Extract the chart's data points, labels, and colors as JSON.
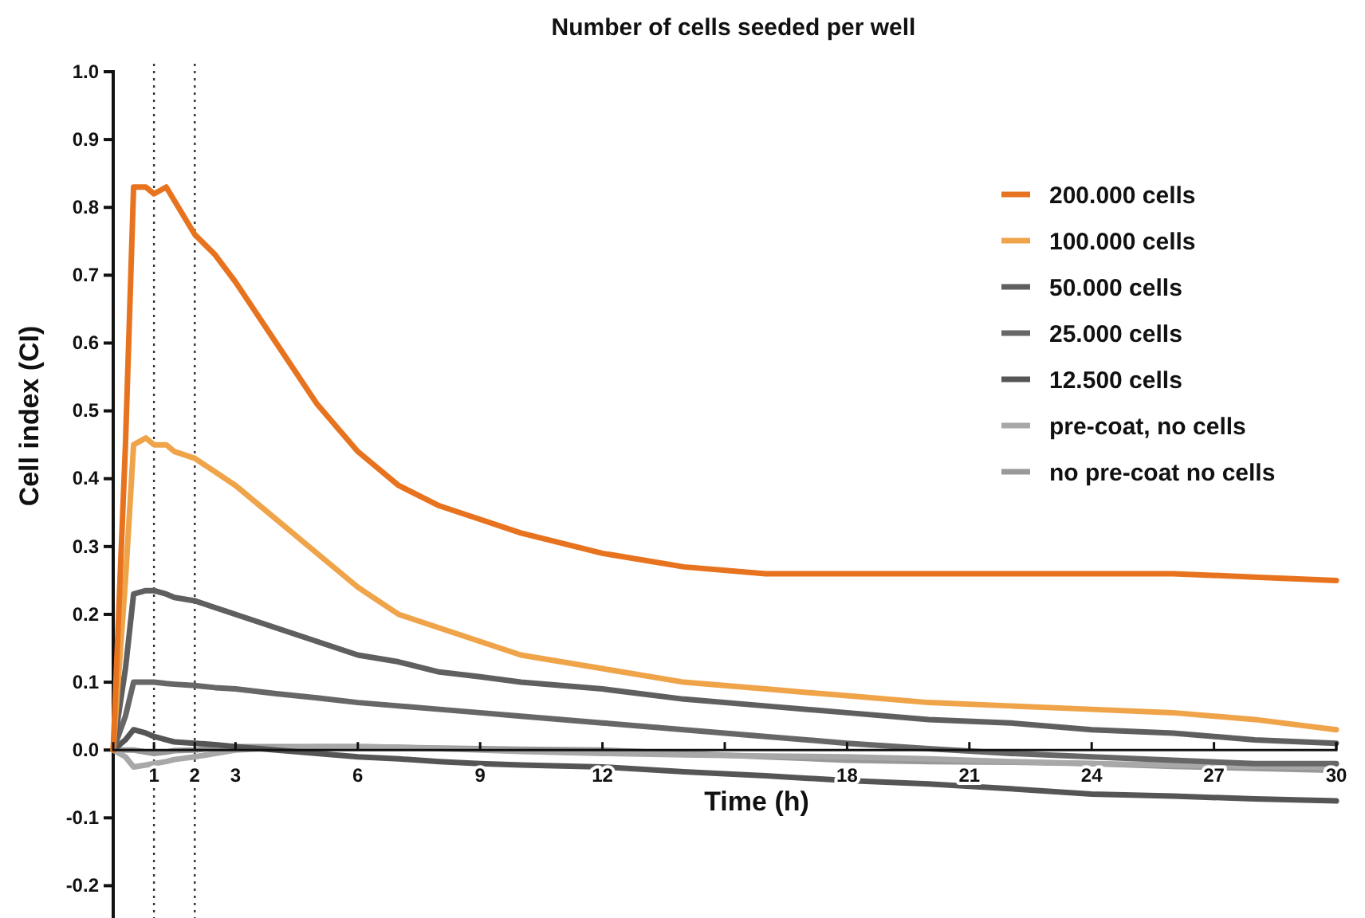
{
  "chart_data": {
    "type": "line",
    "title": "Number of cells seeded per well",
    "xlabel": "Time (h)",
    "ylabel": "Cell index (CI)",
    "xlim": [
      0,
      30
    ],
    "xticks": [
      1,
      2,
      3,
      6,
      9,
      12,
      {
        "value": 15,
        "label": null
      },
      18,
      21,
      24,
      27,
      30
    ],
    "ylim": [
      -0.25,
      1.0
    ],
    "yticks": [
      -0.2,
      -0.1,
      {
        "value": 0,
        "label": "0.0"
      },
      0.1,
      0.2,
      0.3,
      0.4,
      0.5,
      0.6,
      0.7,
      0.8,
      0.9,
      {
        "value": 1,
        "label": "1.0"
      }
    ],
    "grid": false,
    "legend": "top right",
    "marker": "none",
    "line_style": "solid",
    "ref_lines": [
      {
        "axis": "x",
        "value": 1,
        "line_style": "dotted",
        "color": "#333333"
      },
      {
        "axis": "x",
        "value": 2,
        "line_style": "dotted",
        "color": "#333333"
      }
    ],
    "x": [
      0,
      0.3,
      0.5,
      0.8,
      1,
      1.3,
      1.5,
      2,
      2.5,
      3,
      4,
      5,
      6,
      7,
      8,
      9,
      10,
      12,
      14,
      16,
      18,
      20,
      22,
      24,
      26,
      28,
      30
    ],
    "series": [
      {
        "name": "200.000 cells",
        "color": "#e8731f",
        "values": [
          0,
          0.45,
          0.83,
          0.83,
          0.82,
          0.83,
          0.81,
          0.76,
          0.73,
          0.69,
          0.6,
          0.51,
          0.44,
          0.39,
          0.36,
          0.34,
          0.32,
          0.29,
          0.27,
          0.26,
          0.26,
          0.26,
          0.26,
          0.26,
          0.26,
          0.255,
          0.25
        ]
      },
      {
        "name": "100.000 cells",
        "color": "#f0a44a",
        "values": [
          0,
          0.25,
          0.45,
          0.46,
          0.45,
          0.45,
          0.44,
          0.43,
          0.41,
          0.39,
          0.34,
          0.29,
          0.24,
          0.2,
          0.18,
          0.16,
          0.14,
          0.12,
          0.1,
          0.09,
          0.08,
          0.07,
          0.065,
          0.06,
          0.055,
          0.045,
          0.03
        ]
      },
      {
        "name": "50.000 cells",
        "color": "#5f5f5f",
        "values": [
          0,
          0.12,
          0.23,
          0.235,
          0.235,
          0.23,
          0.225,
          0.22,
          0.21,
          0.2,
          0.18,
          0.16,
          0.14,
          0.13,
          0.115,
          0.108,
          0.1,
          0.09,
          0.075,
          0.065,
          0.055,
          0.045,
          0.04,
          0.03,
          0.025,
          0.015,
          0.01
        ]
      },
      {
        "name": "25.000 cells",
        "color": "#676767",
        "values": [
          0,
          0.05,
          0.1,
          0.1,
          0.1,
          0.098,
          0.097,
          0.095,
          0.092,
          0.09,
          0.083,
          0.077,
          0.07,
          0.065,
          0.06,
          0.055,
          0.05,
          0.04,
          0.03,
          0.02,
          0.01,
          0.002,
          -0.005,
          -0.01,
          -0.015,
          -0.02,
          -0.02
        ]
      },
      {
        "name": "12.500 cells",
        "color": "#555555",
        "values": [
          0,
          0.015,
          0.03,
          0.025,
          0.02,
          0.015,
          0.012,
          0.01,
          0.008,
          0.005,
          0,
          -0.005,
          -0.01,
          -0.013,
          -0.017,
          -0.02,
          -0.022,
          -0.025,
          -0.032,
          -0.038,
          -0.045,
          -0.05,
          -0.057,
          -0.065,
          -0.068,
          -0.072,
          -0.075
        ]
      },
      {
        "name": "pre-coat, no cells",
        "color": "#a8a8a8",
        "values": [
          0,
          -0.01,
          -0.025,
          -0.022,
          -0.02,
          -0.017,
          -0.014,
          -0.01,
          -0.005,
          0,
          0.003,
          0.005,
          0.005,
          0.004,
          0.002,
          0,
          -0.002,
          -0.005,
          -0.007,
          -0.009,
          -0.01,
          -0.013,
          -0.017,
          -0.02,
          -0.022,
          -0.024,
          -0.025
        ]
      },
      {
        "name": "no pre-coat no cells",
        "color": "#999999",
        "values": [
          0,
          0,
          0,
          -0.003,
          -0.005,
          -0.003,
          -0.001,
          0,
          0.003,
          0.005,
          0.005,
          0.005,
          0.005,
          0.004,
          0.003,
          0.002,
          0.001,
          0,
          -0.005,
          -0.01,
          -0.015,
          -0.017,
          -0.018,
          -0.02,
          -0.024,
          -0.027,
          -0.03
        ]
      }
    ]
  }
}
